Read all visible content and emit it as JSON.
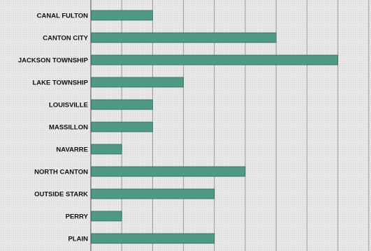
{
  "chart_data": {
    "type": "bar",
    "orientation": "horizontal",
    "title": "",
    "xlabel": "",
    "ylabel": "",
    "categories": [
      "CANAL FULTON",
      "CANTON CITY",
      "JACKSON TOWNSHIP",
      "LAKE TOWNSHIP",
      "LOUISVILLE",
      "MASSILLON",
      "NAVARRE",
      "NORTH CANTON",
      "OUTSIDE STARK",
      "PERRY",
      "PLAIN"
    ],
    "values": [
      2,
      6,
      8,
      3,
      2,
      2,
      1,
      5,
      4,
      1,
      4
    ],
    "xlim": [
      0,
      9
    ],
    "grid": true,
    "bar_color": "#4e9a87",
    "bar_border_color": "#2f6e5e",
    "grid_color": "#9a9a9a"
  }
}
